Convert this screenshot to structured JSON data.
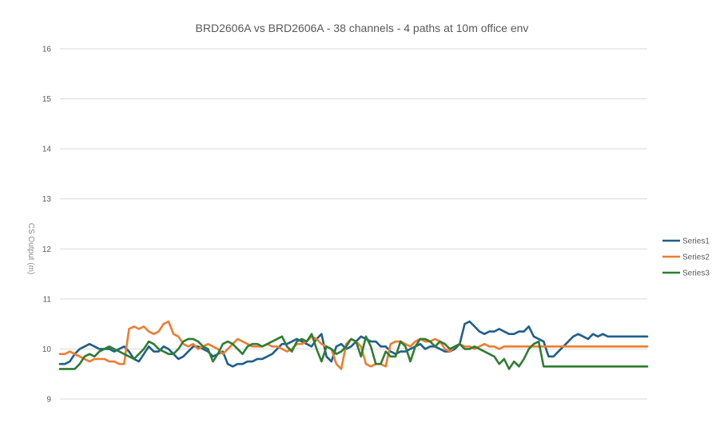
{
  "chart_data": {
    "type": "line",
    "title": "BRD2606A vs BRD2606A - 38 channels - 4 paths at 10m office env",
    "xlabel": "",
    "ylabel": "CS Output (m)",
    "ylim": [
      9,
      16
    ],
    "yticks": [
      9,
      10,
      11,
      12,
      13,
      14,
      15,
      16
    ],
    "grid": true,
    "legend_position": "right",
    "x": [
      1,
      2,
      3,
      4,
      5,
      6,
      7,
      8,
      9,
      10,
      11,
      12,
      13,
      14,
      15,
      16,
      17,
      18,
      19,
      20,
      21,
      22,
      23,
      24,
      25,
      26,
      27,
      28,
      29,
      30,
      31,
      32,
      33,
      34,
      35,
      36,
      37,
      38,
      39,
      40,
      41,
      42,
      43,
      44,
      45,
      46,
      47,
      48,
      49,
      50,
      51,
      52,
      53,
      54,
      55,
      56,
      57,
      58,
      59,
      60,
      61,
      62,
      63,
      64,
      65,
      66,
      67,
      68,
      69,
      70,
      71,
      72,
      73,
      74,
      75,
      76,
      77,
      78,
      79,
      80,
      81,
      82,
      83,
      84,
      85,
      86,
      87,
      88,
      89,
      90,
      91,
      92,
      93,
      94,
      95,
      96,
      97,
      98,
      99,
      100,
      101,
      102,
      103,
      104,
      105,
      106,
      107,
      108,
      109,
      110,
      111,
      112,
      113,
      114,
      115,
      116,
      117,
      118,
      119,
      120
    ],
    "series": [
      {
        "name": "Series1",
        "color": "#1f5f8b",
        "values": [
          9.7,
          9.7,
          9.75,
          9.9,
          10.0,
          10.05,
          10.1,
          10.05,
          10.0,
          10.0,
          10.0,
          9.95,
          10.0,
          10.05,
          9.95,
          9.8,
          9.75,
          9.9,
          10.05,
          9.95,
          9.95,
          10.05,
          10.0,
          9.9,
          9.8,
          9.85,
          9.95,
          10.05,
          10.05,
          10.0,
          9.95,
          9.85,
          9.9,
          9.95,
          9.7,
          9.65,
          9.7,
          9.7,
          9.75,
          9.75,
          9.8,
          9.8,
          9.85,
          9.9,
          10.0,
          10.1,
          10.1,
          10.15,
          10.2,
          10.15,
          10.1,
          10.05,
          10.2,
          10.3,
          9.85,
          9.75,
          10.05,
          10.1,
          10.0,
          10.05,
          10.15,
          10.25,
          10.2,
          10.15,
          10.15,
          10.05,
          10.05,
          9.95,
          9.9,
          9.95,
          9.95,
          10.0,
          10.05,
          10.1,
          10.0,
          10.05,
          10.05,
          10.0,
          9.95,
          9.95,
          10.0,
          10.1,
          10.5,
          10.55,
          10.45,
          10.35,
          10.3,
          10.35,
          10.35,
          10.4,
          10.35,
          10.3,
          10.3,
          10.35,
          10.35,
          10.45,
          10.25,
          10.2,
          10.15,
          9.85,
          9.85,
          9.95,
          10.05,
          10.15,
          10.25,
          10.3,
          10.25,
          10.2,
          10.3,
          10.25,
          10.3,
          10.25,
          10.25,
          10.25,
          10.25,
          10.25,
          10.25,
          10.25,
          10.25,
          10.25
        ]
      },
      {
        "name": "Series2",
        "color": "#ed7d31",
        "values": [
          9.9,
          9.9,
          9.95,
          9.9,
          9.85,
          9.8,
          9.75,
          9.8,
          9.8,
          9.8,
          9.75,
          9.75,
          9.7,
          9.7,
          10.4,
          10.45,
          10.4,
          10.45,
          10.35,
          10.3,
          10.35,
          10.5,
          10.55,
          10.3,
          10.25,
          10.1,
          10.05,
          10.1,
          10.0,
          10.05,
          10.1,
          10.05,
          10.0,
          9.9,
          10.0,
          10.1,
          10.2,
          10.15,
          10.1,
          10.05,
          10.05,
          10.05,
          10.1,
          10.05,
          10.05,
          10.0,
          9.95,
          10.0,
          10.1,
          10.1,
          10.15,
          10.25,
          10.2,
          10.1,
          10.05,
          10.0,
          9.7,
          9.6,
          10.1,
          10.2,
          10.15,
          10.05,
          9.7,
          9.65,
          9.7,
          9.7,
          9.65,
          10.1,
          10.15,
          10.15,
          10.1,
          10.05,
          10.15,
          10.2,
          10.15,
          10.15,
          10.2,
          10.15,
          10.0,
          9.95,
          10.05,
          10.1,
          10.05,
          10.05,
          10.0,
          10.05,
          10.1,
          10.05,
          10.05,
          10.0,
          10.05,
          10.05,
          10.05,
          10.05,
          10.05,
          10.05,
          10.05,
          10.05,
          10.05,
          10.05,
          10.05,
          10.05,
          10.05,
          10.05,
          10.05,
          10.05,
          10.05,
          10.05,
          10.05,
          10.05,
          10.05,
          10.05,
          10.05,
          10.05,
          10.05,
          10.05,
          10.05,
          10.05,
          10.05,
          10.05
        ]
      },
      {
        "name": "Series3",
        "color": "#2e7d32",
        "values": [
          9.6,
          9.6,
          9.6,
          9.6,
          9.7,
          9.85,
          9.9,
          9.85,
          9.95,
          10.0,
          10.05,
          10.0,
          9.95,
          9.9,
          9.85,
          9.8,
          9.9,
          10.0,
          10.15,
          10.1,
          10.0,
          9.95,
          9.9,
          9.9,
          10.0,
          10.15,
          10.2,
          10.2,
          10.15,
          10.05,
          10.0,
          9.75,
          9.9,
          10.1,
          10.15,
          10.1,
          10.0,
          9.9,
          10.05,
          10.1,
          10.1,
          10.05,
          10.1,
          10.15,
          10.2,
          10.25,
          10.05,
          9.95,
          10.15,
          10.2,
          10.15,
          10.3,
          10.0,
          9.75,
          10.05,
          10.0,
          9.9,
          9.95,
          10.05,
          10.2,
          10.15,
          9.85,
          10.25,
          10.05,
          9.7,
          9.7,
          9.95,
          9.85,
          9.85,
          10.15,
          10.05,
          9.75,
          10.05,
          10.2,
          10.2,
          10.15,
          10.05,
          10.15,
          10.1,
          10.0,
          10.05,
          10.1,
          10.0,
          10.0,
          10.05,
          10.0,
          9.95,
          9.9,
          9.85,
          9.7,
          9.8,
          9.6,
          9.75,
          9.65,
          9.8,
          10.0,
          10.1,
          10.15,
          9.65,
          9.65,
          9.65,
          9.65,
          9.65,
          9.65,
          9.65,
          9.65,
          9.65,
          9.65,
          9.65,
          9.65,
          9.65,
          9.65,
          9.65,
          9.65,
          9.65,
          9.65,
          9.65,
          9.65,
          9.65,
          9.65
        ]
      }
    ]
  }
}
